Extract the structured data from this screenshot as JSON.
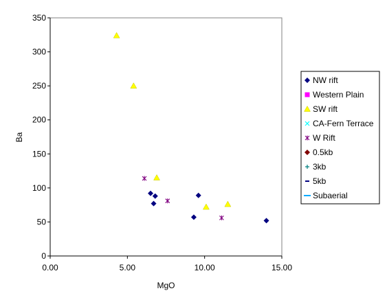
{
  "chart_data": {
    "type": "scatter",
    "title": "",
    "xlabel": "MgO",
    "ylabel": "Ba",
    "xlim": [
      0,
      15
    ],
    "ylim": [
      0,
      350
    ],
    "x_ticks": [
      0,
      5,
      10,
      15
    ],
    "x_tick_labels": [
      "0.00",
      "5.00",
      "10.00",
      "15.00"
    ],
    "y_ticks": [
      0,
      50,
      100,
      150,
      200,
      250,
      300,
      350
    ],
    "y_tick_labels": [
      "0",
      "50",
      "100",
      "150",
      "200",
      "250",
      "300",
      "350"
    ],
    "grid": false,
    "legend_position": "right",
    "series": [
      {
        "name": "NW rift",
        "marker": "diamond",
        "color": "#000080",
        "points": [
          [
            6.5,
            92
          ],
          [
            6.7,
            77
          ],
          [
            6.8,
            88
          ],
          [
            9.3,
            57
          ],
          [
            9.6,
            89
          ],
          [
            14.0,
            52
          ]
        ]
      },
      {
        "name": "Western Plain",
        "marker": "square",
        "color": "#ff00ff",
        "points": []
      },
      {
        "name": "SW rift",
        "marker": "triangle",
        "color": "#ffff00",
        "points": [
          [
            4.3,
            324
          ],
          [
            5.4,
            250
          ],
          [
            6.9,
            115
          ],
          [
            10.1,
            72
          ],
          [
            11.5,
            76
          ]
        ]
      },
      {
        "name": "CA-Fern Terrace",
        "marker": "x",
        "color": "#00ffff",
        "points": []
      },
      {
        "name": "W Rift",
        "marker": "star",
        "color": "#800080",
        "points": [
          [
            6.1,
            114
          ],
          [
            7.6,
            81
          ],
          [
            11.1,
            56
          ]
        ]
      },
      {
        "name": "0.5kb",
        "marker": "diamond",
        "color": "#800000",
        "points": []
      },
      {
        "name": "3kb",
        "marker": "plus",
        "color": "#008080",
        "points": []
      },
      {
        "name": "5kb",
        "marker": "dash",
        "color": "#000080",
        "points": []
      },
      {
        "name": "Subaerial",
        "marker": "line",
        "color": "#00aaff",
        "points": []
      }
    ]
  }
}
